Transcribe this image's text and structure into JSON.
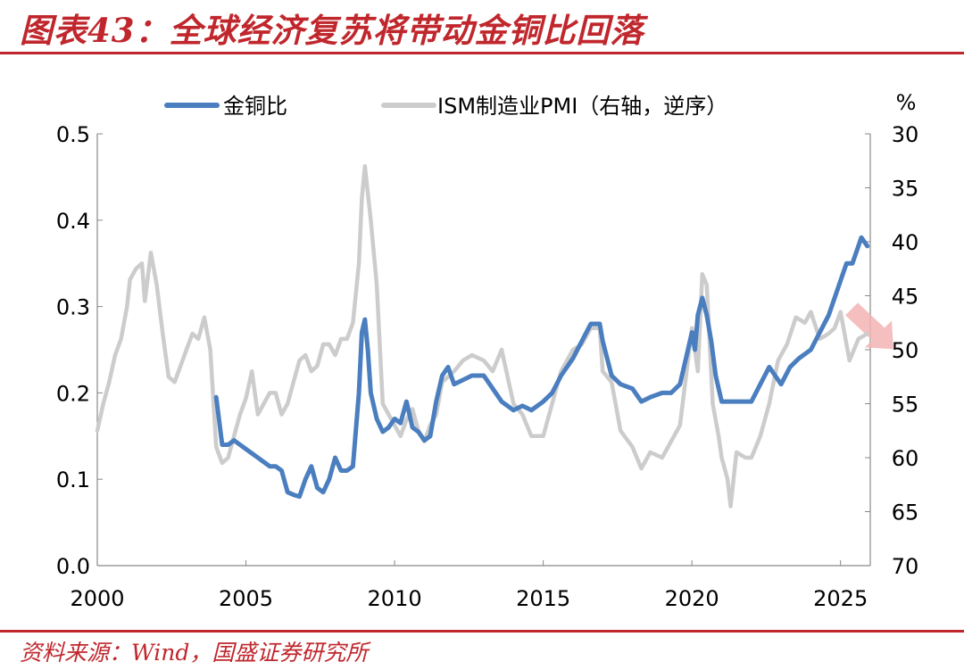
{
  "header": {
    "title": "图表43：全球经济复苏将带动金铜比回落"
  },
  "footer": {
    "source": "资料来源：Wind，国盛证券研究所"
  },
  "colors": {
    "accent": "#c0272d",
    "series1": "#4a7ebf",
    "series2": "#cccccc",
    "arrow": "#f3b4b4"
  },
  "chart_data": {
    "type": "line",
    "title": "",
    "xlabel": "",
    "ylabel": "",
    "y2label": "%",
    "xlim": [
      2000,
      2026
    ],
    "ylim": [
      0,
      0.5
    ],
    "y2lim": [
      70,
      30
    ],
    "y2_reversed": true,
    "x_ticks": [
      "2000",
      "2005",
      "2010",
      "2015",
      "2020",
      "2025"
    ],
    "y_ticks": [
      "0.0",
      "0.1",
      "0.2",
      "0.3",
      "0.4",
      "0.5"
    ],
    "y2_ticks": [
      "30",
      "35",
      "40",
      "45",
      "50",
      "55",
      "60",
      "65",
      "70"
    ],
    "legend_position": "top",
    "grid": false,
    "series": [
      {
        "name": "金铜比",
        "axis": "left",
        "color": "#4a7ebf",
        "x": [
          2004.0,
          2004.2,
          2004.4,
          2004.6,
          2004.8,
          2005.0,
          2005.2,
          2005.4,
          2005.6,
          2005.8,
          2006.0,
          2006.2,
          2006.4,
          2006.6,
          2006.8,
          2007.0,
          2007.2,
          2007.4,
          2007.6,
          2007.8,
          2008.0,
          2008.2,
          2008.4,
          2008.6,
          2008.8,
          2008.9,
          2009.0,
          2009.1,
          2009.2,
          2009.4,
          2009.6,
          2009.8,
          2010.0,
          2010.2,
          2010.4,
          2010.6,
          2010.8,
          2011.0,
          2011.2,
          2011.4,
          2011.6,
          2011.8,
          2012.0,
          2012.3,
          2012.6,
          2013.0,
          2013.3,
          2013.6,
          2014.0,
          2014.3,
          2014.6,
          2015.0,
          2015.3,
          2015.6,
          2016.0,
          2016.3,
          2016.6,
          2016.9,
          2017.0,
          2017.3,
          2017.6,
          2018.0,
          2018.3,
          2018.6,
          2019.0,
          2019.3,
          2019.6,
          2020.0,
          2020.1,
          2020.2,
          2020.35,
          2020.5,
          2020.65,
          2020.8,
          2021.0,
          2021.3,
          2021.6,
          2022.0,
          2022.3,
          2022.6,
          2022.8,
          2023.0,
          2023.3,
          2023.6,
          2024.0,
          2024.3,
          2024.6,
          2025.0,
          2025.2,
          2025.4,
          2025.6,
          2025.7,
          2025.9
        ],
        "values": [
          0.195,
          0.14,
          0.14,
          0.145,
          0.14,
          0.135,
          0.13,
          0.125,
          0.12,
          0.115,
          0.115,
          0.11,
          0.085,
          0.082,
          0.08,
          0.1,
          0.115,
          0.09,
          0.085,
          0.1,
          0.125,
          0.11,
          0.11,
          0.115,
          0.2,
          0.27,
          0.285,
          0.25,
          0.2,
          0.17,
          0.155,
          0.16,
          0.17,
          0.165,
          0.19,
          0.16,
          0.155,
          0.145,
          0.15,
          0.19,
          0.22,
          0.23,
          0.21,
          0.215,
          0.22,
          0.22,
          0.205,
          0.19,
          0.18,
          0.185,
          0.18,
          0.19,
          0.2,
          0.22,
          0.24,
          0.26,
          0.28,
          0.28,
          0.26,
          0.22,
          0.21,
          0.205,
          0.19,
          0.195,
          0.2,
          0.2,
          0.21,
          0.27,
          0.25,
          0.29,
          0.31,
          0.29,
          0.26,
          0.22,
          0.19,
          0.19,
          0.19,
          0.19,
          0.21,
          0.23,
          0.22,
          0.21,
          0.23,
          0.24,
          0.25,
          0.27,
          0.29,
          0.33,
          0.35,
          0.35,
          0.37,
          0.38,
          0.37
        ]
      },
      {
        "name": "ISM制造业PMI（右轴，逆序）",
        "axis": "right",
        "color": "#cccccc",
        "x": [
          2000.0,
          2000.2,
          2000.4,
          2000.6,
          2000.8,
          2001.0,
          2001.1,
          2001.3,
          2001.5,
          2001.6,
          2001.8,
          2002.0,
          2002.2,
          2002.4,
          2002.6,
          2002.8,
          2003.0,
          2003.2,
          2003.4,
          2003.6,
          2003.8,
          2004.0,
          2004.2,
          2004.4,
          2004.6,
          2004.8,
          2005.0,
          2005.2,
          2005.4,
          2005.6,
          2005.8,
          2006.0,
          2006.2,
          2006.4,
          2006.6,
          2006.8,
          2007.0,
          2007.2,
          2007.4,
          2007.6,
          2007.8,
          2008.0,
          2008.2,
          2008.4,
          2008.6,
          2008.8,
          2008.9,
          2009.0,
          2009.2,
          2009.4,
          2009.6,
          2009.8,
          2010.0,
          2010.2,
          2010.4,
          2010.6,
          2010.8,
          2011.0,
          2011.2,
          2011.4,
          2011.6,
          2011.8,
          2012.0,
          2012.3,
          2012.6,
          2013.0,
          2013.3,
          2013.6,
          2014.0,
          2014.3,
          2014.6,
          2015.0,
          2015.3,
          2015.6,
          2016.0,
          2016.3,
          2016.6,
          2016.9,
          2017.0,
          2017.3,
          2017.6,
          2018.0,
          2018.3,
          2018.6,
          2019.0,
          2019.3,
          2019.6,
          2020.0,
          2020.2,
          2020.35,
          2020.5,
          2020.7,
          2020.9,
          2021.0,
          2021.2,
          2021.3,
          2021.5,
          2021.8,
          2022.0,
          2022.3,
          2022.6,
          2022.9,
          2023.2,
          2023.5,
          2023.8,
          2024.0,
          2024.3,
          2024.6,
          2024.8,
          2025.0,
          2025.3,
          2025.6,
          2025.9
        ],
        "values": [
          57.5,
          55.0,
          53.0,
          50.5,
          49.0,
          46.0,
          43.5,
          42.5,
          42.0,
          45.5,
          41.0,
          44.0,
          48.5,
          52.5,
          53.0,
          51.5,
          50.0,
          48.5,
          49.0,
          47.0,
          50.0,
          59.0,
          60.5,
          60.0,
          58.0,
          56.0,
          54.5,
          52.0,
          56.0,
          55.0,
          54.0,
          54.0,
          56.0,
          55.0,
          53.0,
          51.0,
          50.5,
          52.0,
          51.5,
          49.5,
          49.5,
          50.5,
          49.0,
          49.0,
          47.5,
          42.0,
          36.0,
          33.0,
          38.0,
          44.0,
          55.0,
          56.0,
          57.0,
          58.0,
          56.5,
          55.5,
          57.5,
          58.5,
          57.0,
          56.0,
          53.0,
          52.5,
          52.0,
          51.0,
          50.5,
          51.0,
          52.0,
          50.0,
          55.0,
          56.0,
          58.0,
          58.0,
          55.0,
          52.0,
          50.0,
          49.5,
          48.0,
          48.0,
          52.0,
          53.0,
          57.5,
          59.0,
          61.0,
          59.5,
          60.0,
          58.5,
          57.0,
          48.0,
          52.0,
          43.0,
          44.0,
          55.0,
          58.0,
          60.0,
          62.0,
          64.5,
          59.5,
          60.0,
          60.0,
          58.0,
          55.0,
          51.0,
          49.5,
          47.0,
          47.5,
          46.5,
          49.0,
          48.5,
          48.0,
          46.5,
          51.0,
          49.0,
          48.5
        ]
      }
    ]
  }
}
